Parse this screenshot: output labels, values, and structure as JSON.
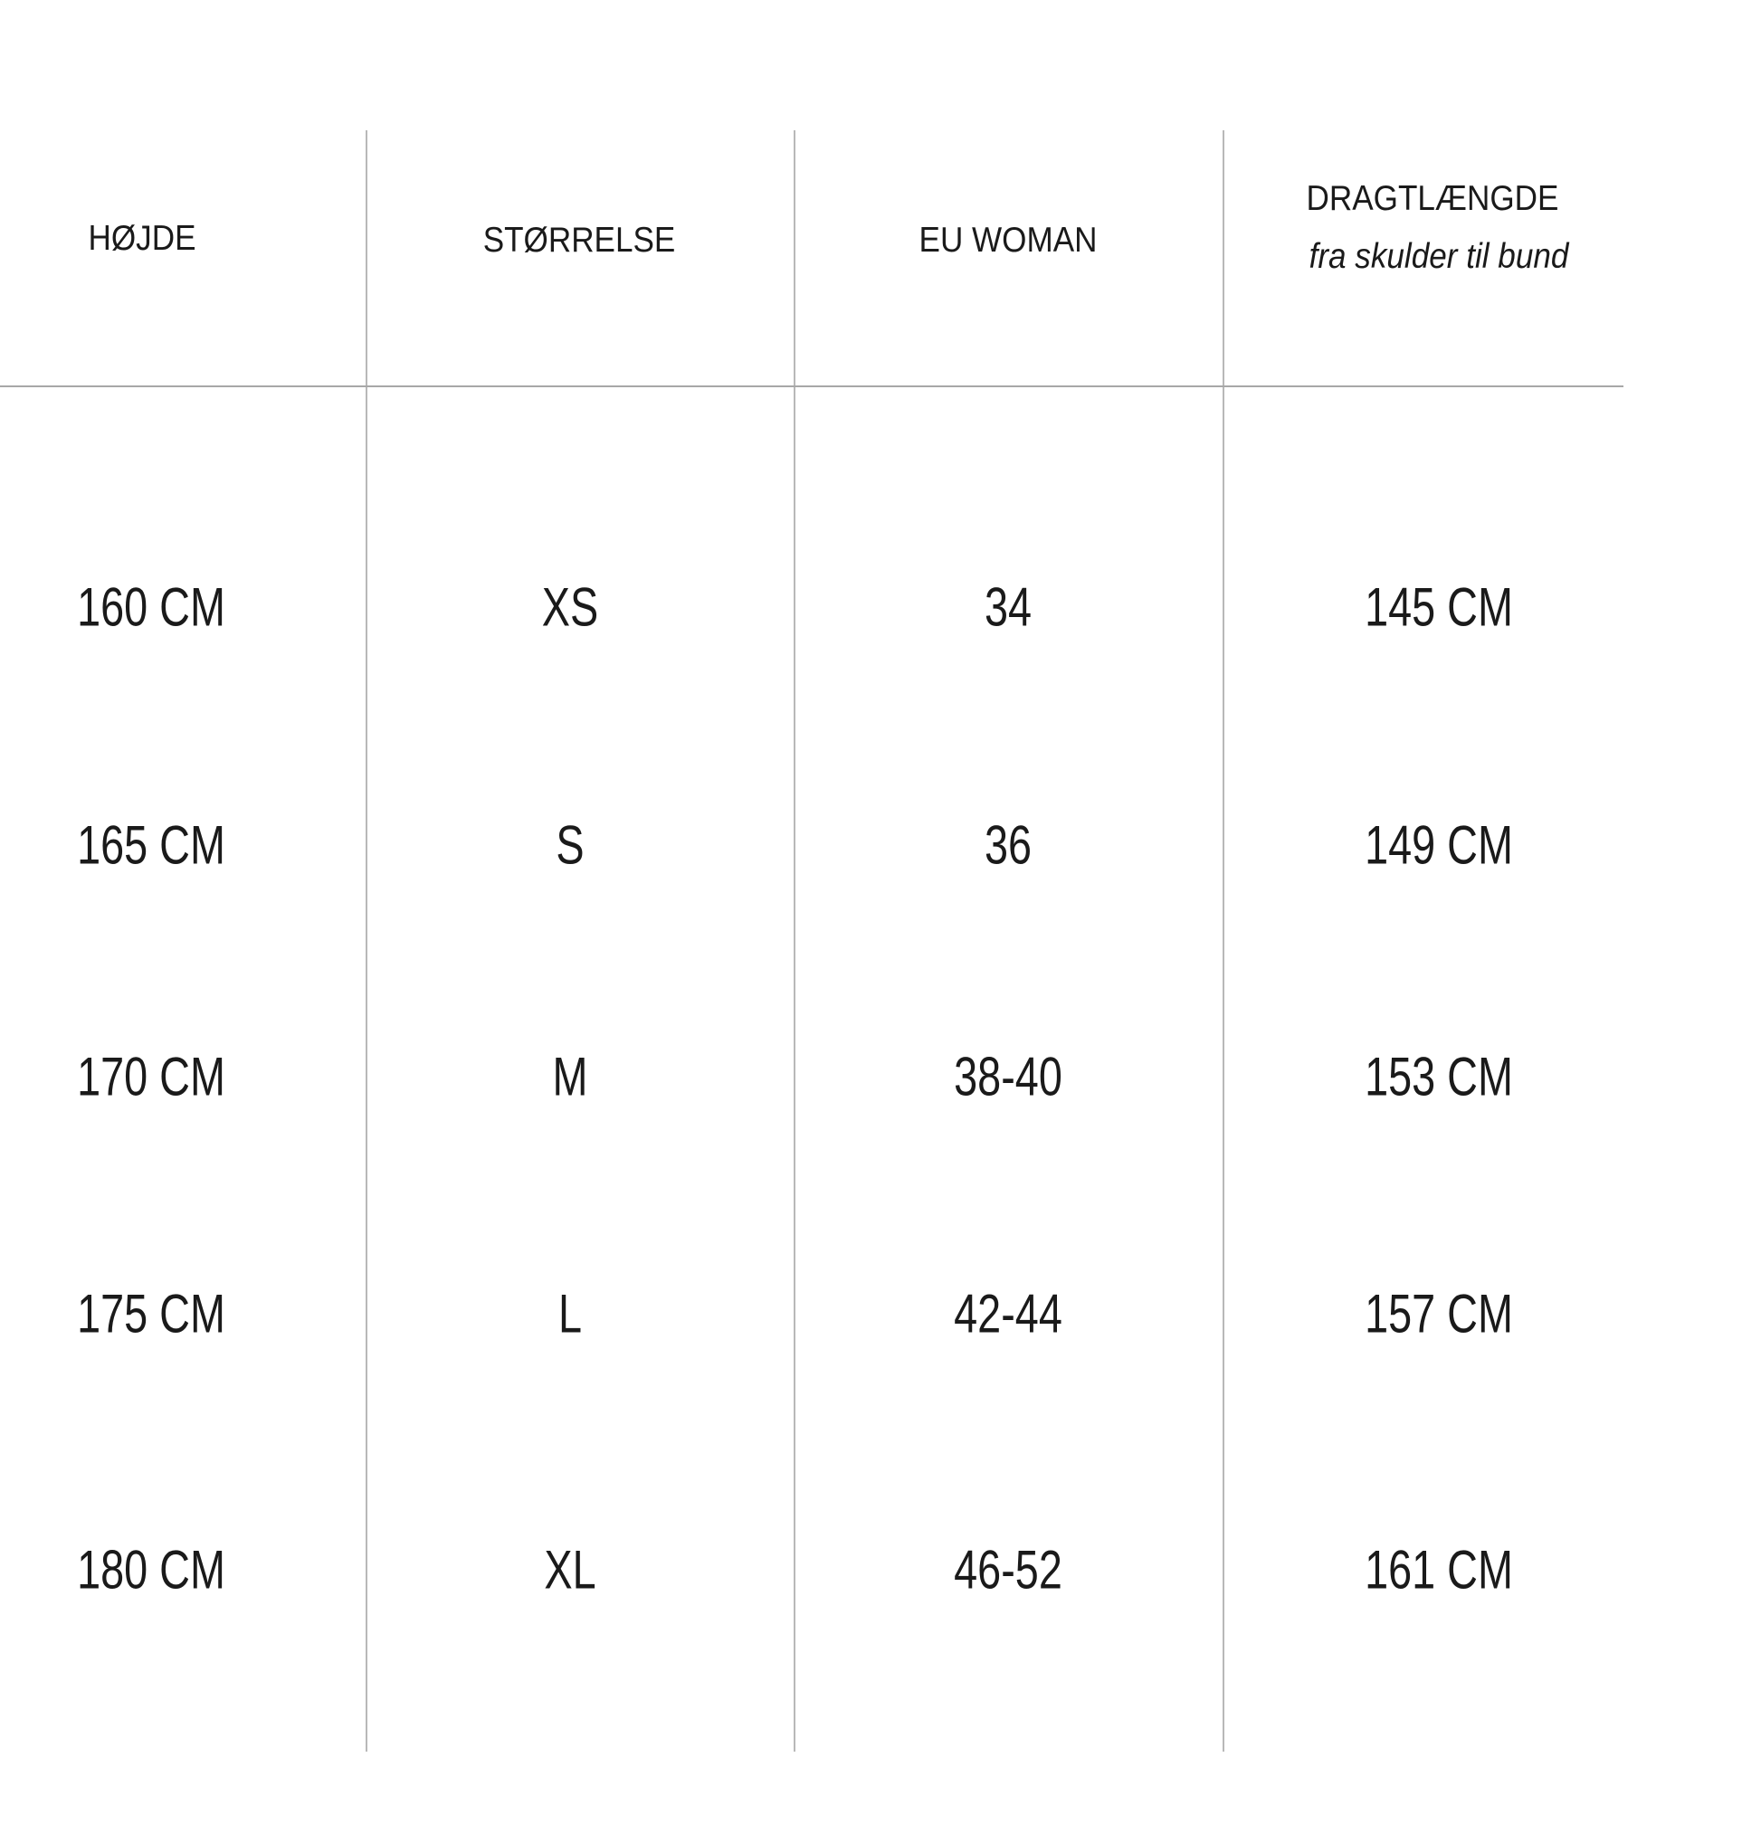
{
  "table": {
    "headers": [
      {
        "label": "HØJDE"
      },
      {
        "label": "STØRRELSE"
      },
      {
        "label": "EU WOMAN"
      },
      {
        "label": "DRAGTLÆNGDE",
        "sublabel": "fra skulder til bund"
      }
    ],
    "rows": [
      [
        "160 CM",
        "XS",
        "34",
        "145 CM"
      ],
      [
        "165 CM",
        "S",
        "36",
        "149 CM"
      ],
      [
        "170 CM",
        "M",
        "38-40",
        "153 CM"
      ],
      [
        "175 CM",
        "L",
        "42-44",
        "157 CM"
      ],
      [
        "180 CM",
        "XL",
        "46-52",
        "161 CM"
      ]
    ]
  }
}
